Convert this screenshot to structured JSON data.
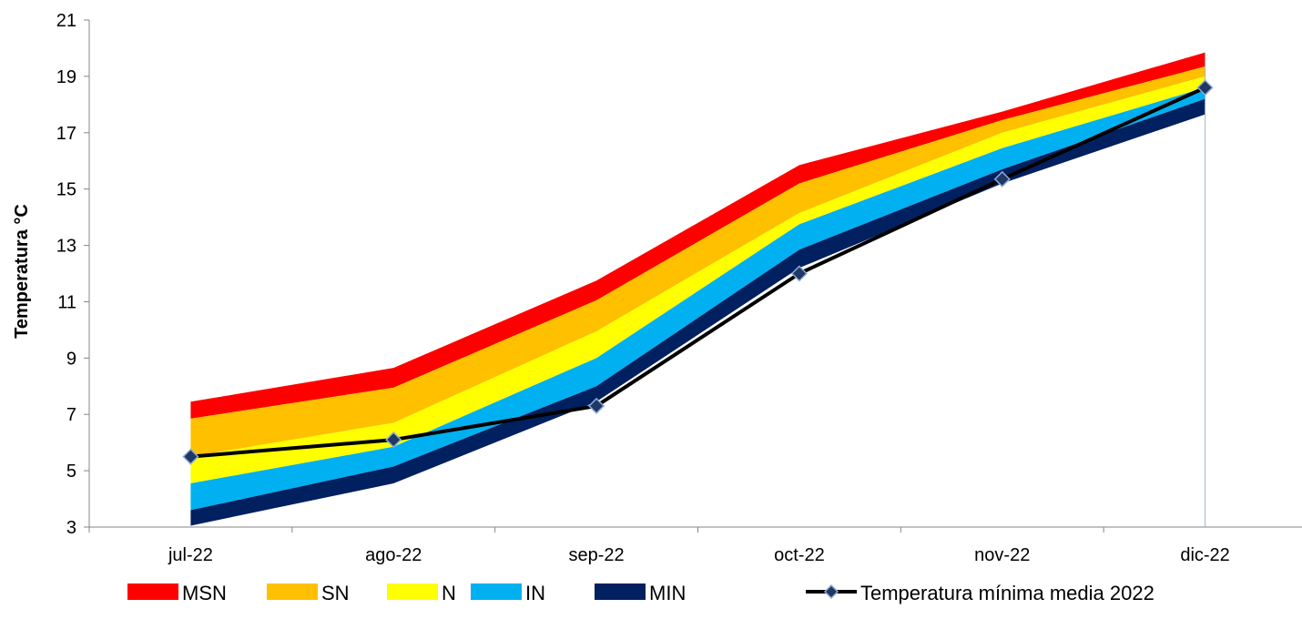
{
  "chart_data": {
    "type": "area",
    "title": "",
    "xlabel": "",
    "ylabel": "Temperatura °C",
    "categories": [
      "jul-22",
      "ago-22",
      "sep-22",
      "oct-22",
      "nov-22",
      "dic-22"
    ],
    "ylim": [
      3,
      21
    ],
    "yticks": [
      3,
      5,
      7,
      9,
      11,
      13,
      15,
      17,
      19,
      21
    ],
    "grid": false,
    "legend_position": "bottom",
    "bands": [
      {
        "name": "MSN",
        "color": "#ff0000",
        "lower": [
          6.85,
          7.95,
          11.05,
          15.2,
          17.45,
          19.35
        ],
        "upper": [
          7.45,
          8.65,
          11.75,
          15.85,
          17.75,
          19.85
        ]
      },
      {
        "name": "SN",
        "color": "#ffc000",
        "lower": [
          5.5,
          6.7,
          9.95,
          14.15,
          17.0,
          19.0
        ],
        "upper": [
          6.85,
          7.95,
          11.05,
          15.2,
          17.45,
          19.35
        ]
      },
      {
        "name": "N",
        "color": "#ffff00",
        "lower": [
          4.55,
          5.85,
          9.0,
          13.75,
          16.45,
          18.6
        ],
        "upper": [
          5.5,
          6.7,
          9.95,
          14.15,
          17.0,
          19.0
        ]
      },
      {
        "name": "IN",
        "color": "#00b0f0",
        "lower": [
          3.6,
          5.15,
          8.0,
          12.85,
          15.7,
          18.2
        ],
        "upper": [
          4.55,
          5.85,
          9.0,
          13.75,
          16.45,
          18.6
        ]
      },
      {
        "name": "MIN",
        "color": "#002060",
        "lower": [
          3.05,
          4.55,
          7.45,
          12.2,
          15.2,
          17.65
        ],
        "upper": [
          3.6,
          5.15,
          8.0,
          12.85,
          15.7,
          18.2
        ]
      }
    ],
    "series": [
      {
        "name": "Temperatura mínima media 2022",
        "values": [
          5.5,
          6.1,
          7.3,
          12.0,
          15.35,
          18.6
        ],
        "color": "#000000",
        "marker_color": "#1f3864"
      }
    ]
  }
}
